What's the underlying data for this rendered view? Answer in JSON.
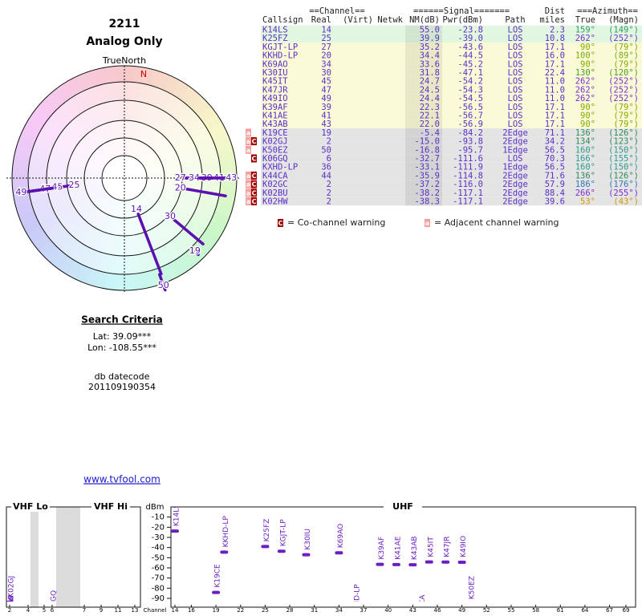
{
  "header": {
    "id": "2211",
    "mode": "Analog Only"
  },
  "polar": {
    "label": "TrueNorth",
    "north": "N"
  },
  "table": {
    "groups": [
      "==Channel==",
      "======Signal=======",
      "Dist",
      "===Azimuth=="
    ],
    "columns": [
      "Callsign",
      "Real",
      "(Virt)",
      "Netwk",
      "NM(dB)",
      "Pwr(dBm)",
      "Path",
      "miles",
      "True",
      "(Magn)"
    ],
    "rows": [
      {
        "callsign": "K14LS",
        "real": "14",
        "nm": "55.0",
        "pwr": "-23.8",
        "path": "LOS",
        "dist": "2.3",
        "true": "159°",
        "magn": "(149°)",
        "az_color": "#2e9a6a"
      },
      {
        "callsign": "K25FZ",
        "real": "25",
        "nm": "39.9",
        "pwr": "-39.0",
        "path": "LOS",
        "dist": "10.8",
        "true": "262°",
        "magn": "(252°)",
        "az_color": "#7a2fd0"
      },
      {
        "callsign": "KGJT-LP",
        "real": "27",
        "nm": "35.2",
        "pwr": "-43.6",
        "path": "LOS",
        "dist": "17.1",
        "true": "90°",
        "magn": "(79°)",
        "az_color": "#88aa00"
      },
      {
        "callsign": "KKHD-LP",
        "real": "20",
        "nm": "34.4",
        "pwr": "-44.5",
        "path": "LOS",
        "dist": "16.0",
        "true": "100°",
        "magn": "(89°)",
        "az_color": "#7aaa10"
      },
      {
        "callsign": "K69AO",
        "real": "34",
        "nm": "33.6",
        "pwr": "-45.2",
        "path": "LOS",
        "dist": "17.1",
        "true": "90°",
        "magn": "(79°)",
        "az_color": "#88aa00"
      },
      {
        "callsign": "K30IU",
        "real": "30",
        "nm": "31.8",
        "pwr": "-47.1",
        "path": "LOS",
        "dist": "22.4",
        "true": "130°",
        "magn": "(120°)",
        "az_color": "#4aa020"
      },
      {
        "callsign": "K45IT",
        "real": "45",
        "nm": "24.7",
        "pwr": "-54.2",
        "path": "LOS",
        "dist": "11.0",
        "true": "262°",
        "magn": "(252°)",
        "az_color": "#7a2fd0"
      },
      {
        "callsign": "K47JR",
        "real": "47",
        "nm": "24.5",
        "pwr": "-54.3",
        "path": "LOS",
        "dist": "11.0",
        "true": "262°",
        "magn": "(252°)",
        "az_color": "#7a2fd0"
      },
      {
        "callsign": "K49IO",
        "real": "49",
        "nm": "24.4",
        "pwr": "-54.5",
        "path": "LOS",
        "dist": "11.0",
        "true": "262°",
        "magn": "(252°)",
        "az_color": "#7a2fd0"
      },
      {
        "callsign": "K39AF",
        "real": "39",
        "nm": "22.3",
        "pwr": "-56.5",
        "path": "LOS",
        "dist": "17.1",
        "true": "90°",
        "magn": "(79°)",
        "az_color": "#88aa00"
      },
      {
        "callsign": "K41AE",
        "real": "41",
        "nm": "22.1",
        "pwr": "-56.7",
        "path": "LOS",
        "dist": "17.1",
        "true": "90°",
        "magn": "(79°)",
        "az_color": "#88aa00"
      },
      {
        "callsign": "K43AB",
        "real": "43",
        "nm": "22.0",
        "pwr": "-56.9",
        "path": "LOS",
        "dist": "17.1",
        "true": "90°",
        "magn": "(79°)",
        "az_color": "#88aa00"
      },
      {
        "callsign": "K19CE",
        "real": "19",
        "nm": "-5.4",
        "pwr": "-84.2",
        "path": "2Edge",
        "dist": "71.1",
        "true": "136°",
        "magn": "(126°)",
        "az_color": "#2e8a5a",
        "warnings": [
          "a"
        ]
      },
      {
        "callsign": "K02GJ",
        "real": "2",
        "nm": "-15.0",
        "pwr": "-93.8",
        "path": "2Edge",
        "dist": "34.2",
        "true": "134°",
        "magn": "(123°)",
        "az_color": "#2e8a5a",
        "warnings": [
          "a",
          "C"
        ]
      },
      {
        "callsign": "K50EZ",
        "real": "50",
        "nm": "-16.8",
        "pwr": "-95.7",
        "path": "1Edge",
        "dist": "56.5",
        "true": "160°",
        "magn": "(150°)",
        "az_color": "#2e9a8a",
        "warnings": [
          "a"
        ]
      },
      {
        "callsign": "K06GQ",
        "real": "6",
        "nm": "-32.7",
        "pwr": "-111.6",
        "path": "LOS",
        "dist": "70.3",
        "true": "166°",
        "magn": "(155°)",
        "az_color": "#2e9a9a",
        "warnings": [
          "C"
        ]
      },
      {
        "callsign": "KXHD-LP",
        "real": "36",
        "nm": "-33.1",
        "pwr": "-111.9",
        "path": "1Edge",
        "dist": "56.5",
        "true": "160°",
        "magn": "(150°)",
        "az_color": "#2e9a8a"
      },
      {
        "callsign": "K44CA",
        "real": "44",
        "nm": "-35.9",
        "pwr": "-114.8",
        "path": "2Edge",
        "dist": "71.6",
        "true": "136°",
        "magn": "(126°)",
        "az_color": "#2e8a5a",
        "warnings": [
          "a",
          "C"
        ]
      },
      {
        "callsign": "K02GC",
        "real": "2",
        "nm": "-37.2",
        "pwr": "-116.0",
        "path": "2Edge",
        "dist": "57.9",
        "true": "186°",
        "magn": "(176°)",
        "az_color": "#3377bb",
        "warnings": [
          "a",
          "C"
        ]
      },
      {
        "callsign": "K02BU",
        "real": "2",
        "nm": "-38.2",
        "pwr": "-117.1",
        "path": "2Edge",
        "dist": "88.4",
        "true": "266°",
        "magn": "(255°)",
        "az_color": "#7a2fd0",
        "warnings": [
          "a",
          "C"
        ]
      },
      {
        "callsign": "K02HW",
        "real": "2",
        "nm": "-38.3",
        "pwr": "-117.1",
        "path": "2Edge",
        "dist": "39.6",
        "true": "53°",
        "magn": "(43°)",
        "az_color": "#cc9900",
        "warnings": [
          "a",
          "C"
        ]
      }
    ],
    "legend": {
      "co": {
        "icon": "C",
        "text": "= Co-channel warning"
      },
      "adj": {
        "icon": "a",
        "text": "= Adjacent channel warning"
      }
    }
  },
  "search": {
    "title": "Search Criteria",
    "lat": "Lat: 39.09***",
    "lon": "Lon: -108.55***",
    "db_label": "db datecode",
    "db_code": "201109190354",
    "link": "www.tvfool.com"
  },
  "spectrum": {
    "sections": [
      "VHF Lo",
      "VHF Hi",
      "UHF"
    ],
    "y_label": "dBm",
    "x_label": "Channel",
    "ylim": [
      0,
      -93
    ],
    "yticks": [
      -10,
      -20,
      -30,
      -40,
      -50,
      -60,
      -70,
      -80,
      -90
    ],
    "vhf_ticks": [
      2,
      4,
      5,
      6,
      7,
      9,
      11,
      13
    ],
    "uhf_xlim": [
      14,
      69
    ],
    "uhf_ticks": [
      14,
      16,
      19,
      22,
      25,
      28,
      31,
      34,
      37,
      40,
      43,
      46,
      49,
      52,
      55,
      58,
      61,
      64,
      67,
      69
    ]
  }
}
